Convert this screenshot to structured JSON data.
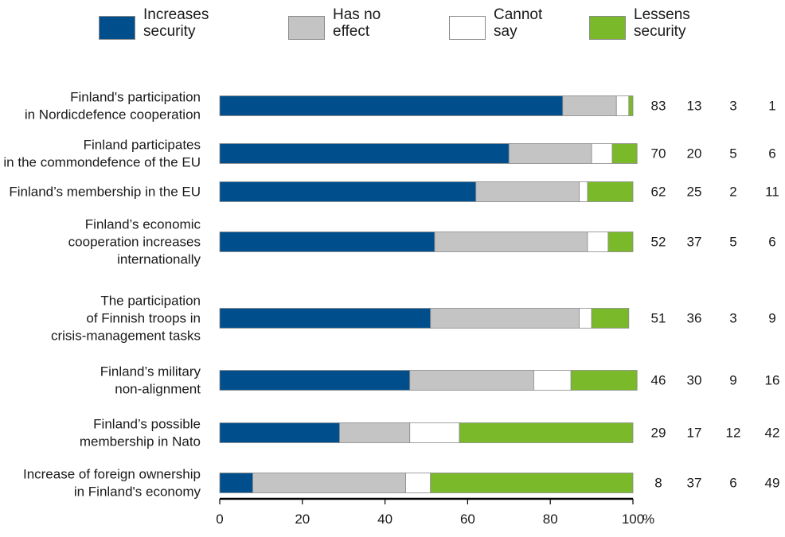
{
  "legend": [
    {
      "lines": [
        "Increases",
        "security"
      ],
      "color": "#004f8c"
    },
    {
      "lines": [
        "Has no",
        "effect"
      ],
      "color": "#c4c4c4"
    },
    {
      "lines": [
        "Cannot",
        "say"
      ],
      "color": "#ffffff"
    },
    {
      "lines": [
        "Lessens",
        "security"
      ],
      "color": "#7ab929"
    }
  ],
  "chart_data": {
    "type": "bar",
    "orientation": "horizontal",
    "stacked": true,
    "categories": [
      [
        "Finland's participation",
        "in Nordicdefence cooperation"
      ],
      [
        "Finland participates",
        "in the commondefence of the EU"
      ],
      [
        "Finland’s membership in the EU"
      ],
      [
        "Finland’s economic",
        "cooperation increases",
        "internationally"
      ],
      [
        "The participation",
        "of Finnish troops in",
        "crisis-management tasks"
      ],
      [
        "Finland’s military",
        "non-alignment"
      ],
      [
        "Finland’s possible",
        "membership in Nato"
      ],
      [
        "Increase of foreign ownership",
        "in Finland's economy"
      ]
    ],
    "series": [
      {
        "name": "Increases security",
        "color": "#004f8c",
        "values": [
          83,
          70,
          62,
          52,
          51,
          46,
          29,
          8
        ]
      },
      {
        "name": "Has no effect",
        "color": "#c4c4c4",
        "values": [
          13,
          20,
          25,
          37,
          36,
          30,
          17,
          37
        ]
      },
      {
        "name": "Cannot say",
        "color": "#ffffff",
        "values": [
          3,
          5,
          2,
          5,
          3,
          9,
          12,
          6
        ]
      },
      {
        "name": "Lessens security",
        "color": "#7ab929",
        "values": [
          1,
          6,
          11,
          6,
          9,
          16,
          42,
          49
        ]
      }
    ],
    "xlim": [
      0,
      100
    ],
    "xticks": [
      "0",
      "20",
      "40",
      "60",
      "80",
      "100"
    ],
    "x_unit": "%",
    "grid": false,
    "legend_position": "top"
  }
}
